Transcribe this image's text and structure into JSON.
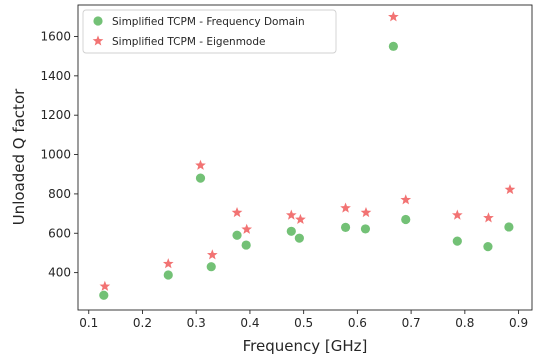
{
  "chart_data": {
    "type": "scatter",
    "title": "",
    "xlabel": "Frequency [GHz]",
    "ylabel": "Unloaded Q factor",
    "xlim": [
      0.08,
      0.925
    ],
    "ylim": [
      210,
      1760
    ],
    "xticks": [
      0.1,
      0.2,
      0.3,
      0.4,
      0.5,
      0.6,
      0.7,
      0.8,
      0.9
    ],
    "xtick_labels": [
      "0.1",
      "0.2",
      "0.3",
      "0.4",
      "0.5",
      "0.6",
      "0.7",
      "0.8",
      "0.9"
    ],
    "yticks": [
      400,
      600,
      800,
      1000,
      1200,
      1400,
      1600
    ],
    "ytick_labels": [
      "400",
      "600",
      "800",
      "1000",
      "1200",
      "1400",
      "1600"
    ],
    "grid": false,
    "legend_position": "top-left",
    "series": [
      {
        "name": "Simplified TCPM - Frequency Domain",
        "marker": "circle",
        "color": "#4caf50",
        "points": [
          {
            "x": 0.128,
            "y": 285
          },
          {
            "x": 0.248,
            "y": 388
          },
          {
            "x": 0.308,
            "y": 880
          },
          {
            "x": 0.328,
            "y": 430
          },
          {
            "x": 0.376,
            "y": 590
          },
          {
            "x": 0.393,
            "y": 540
          },
          {
            "x": 0.477,
            "y": 610
          },
          {
            "x": 0.492,
            "y": 575
          },
          {
            "x": 0.578,
            "y": 630
          },
          {
            "x": 0.615,
            "y": 622
          },
          {
            "x": 0.667,
            "y": 1550
          },
          {
            "x": 0.69,
            "y": 670
          },
          {
            "x": 0.786,
            "y": 560
          },
          {
            "x": 0.843,
            "y": 532
          },
          {
            "x": 0.882,
            "y": 632
          }
        ]
      },
      {
        "name": "Simplified TCPM - Eigenmode",
        "marker": "star",
        "color": "#f05a5a",
        "points": [
          {
            "x": 0.13,
            "y": 330
          },
          {
            "x": 0.248,
            "y": 445
          },
          {
            "x": 0.308,
            "y": 945
          },
          {
            "x": 0.33,
            "y": 490
          },
          {
            "x": 0.376,
            "y": 705
          },
          {
            "x": 0.394,
            "y": 620
          },
          {
            "x": 0.477,
            "y": 692
          },
          {
            "x": 0.494,
            "y": 670
          },
          {
            "x": 0.578,
            "y": 728
          },
          {
            "x": 0.616,
            "y": 705
          },
          {
            "x": 0.667,
            "y": 1700
          },
          {
            "x": 0.69,
            "y": 770
          },
          {
            "x": 0.786,
            "y": 692
          },
          {
            "x": 0.844,
            "y": 678
          },
          {
            "x": 0.884,
            "y": 822
          }
        ]
      }
    ]
  }
}
